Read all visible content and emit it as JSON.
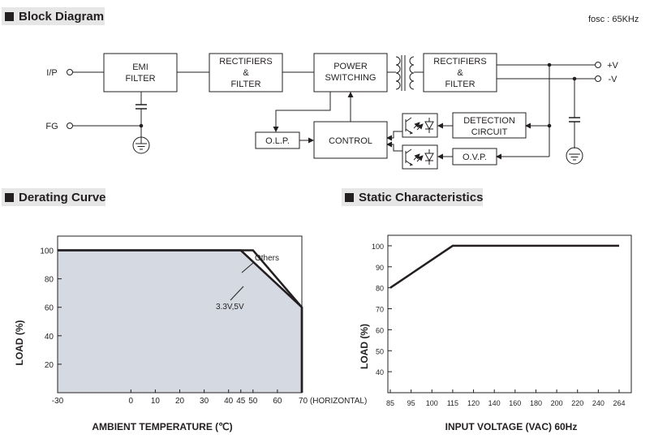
{
  "sections": {
    "block_diagram": "Block Diagram",
    "derating_curve": "Derating Curve",
    "static_characteristics": "Static Characteristics"
  },
  "block_diagram": {
    "fosc": "fosc : 65KHz",
    "terminals": {
      "ip": "I/P",
      "fg": "FG",
      "plus_v": "+V",
      "minus_v": "-V"
    },
    "blocks": {
      "emi_filter": [
        "EMI",
        "FILTER"
      ],
      "rectifiers_filter_in": [
        "RECTIFIERS",
        "&",
        "FILTER"
      ],
      "power_switching": [
        "POWER",
        "SWITCHING"
      ],
      "rectifiers_filter_out": [
        "RECTIFIERS",
        "&",
        "FILTER"
      ],
      "olp": "O.L.P.",
      "control": "CONTROL",
      "detection_circuit": [
        "DETECTION",
        "CIRCUIT"
      ],
      "ovp": "O.V.P."
    }
  },
  "chart_data": [
    {
      "type": "area",
      "title": "Derating Curve",
      "xlabel": "AMBIENT TEMPERATURE (℃)",
      "ylabel": "LOAD (%)",
      "x_ticks": [
        -30,
        0,
        10,
        20,
        30,
        40,
        45,
        50,
        60,
        70
      ],
      "x_tick_labels": [
        "-30",
        "0",
        "10",
        "20",
        "30",
        "40",
        "45",
        "50",
        "60",
        "70 (HORIZONTAL)"
      ],
      "y_ticks": [
        20,
        40,
        60,
        80,
        100
      ],
      "xlim": [
        -30,
        70
      ],
      "ylim": [
        0,
        110
      ],
      "series": [
        {
          "name": "Others",
          "x": [
            -30,
            50,
            70,
            70
          ],
          "y": [
            100,
            100,
            60,
            0
          ]
        },
        {
          "name": "3.3V,5V",
          "x": [
            -30,
            45,
            70,
            70
          ],
          "y": [
            100,
            100,
            60,
            0
          ]
        }
      ],
      "shaded_area": true,
      "shade_color": "#d5d9e2",
      "line_color": "#231f20"
    },
    {
      "type": "line",
      "title": "Static Characteristics",
      "xlabel": "INPUT VOLTAGE (VAC) 60Hz",
      "ylabel": "LOAD (%)",
      "x_categories": [
        "85",
        "95",
        "100",
        "115",
        "120",
        "140",
        "160",
        "180",
        "200",
        "220",
        "240",
        "264"
      ],
      "y_ticks": [
        40,
        50,
        60,
        70,
        80,
        90,
        100
      ],
      "ylim": [
        30,
        105
      ],
      "series": [
        {
          "x": [
            "85",
            "115",
            "264"
          ],
          "y": [
            80,
            100,
            100
          ]
        }
      ],
      "line_color": "#231f20"
    }
  ]
}
